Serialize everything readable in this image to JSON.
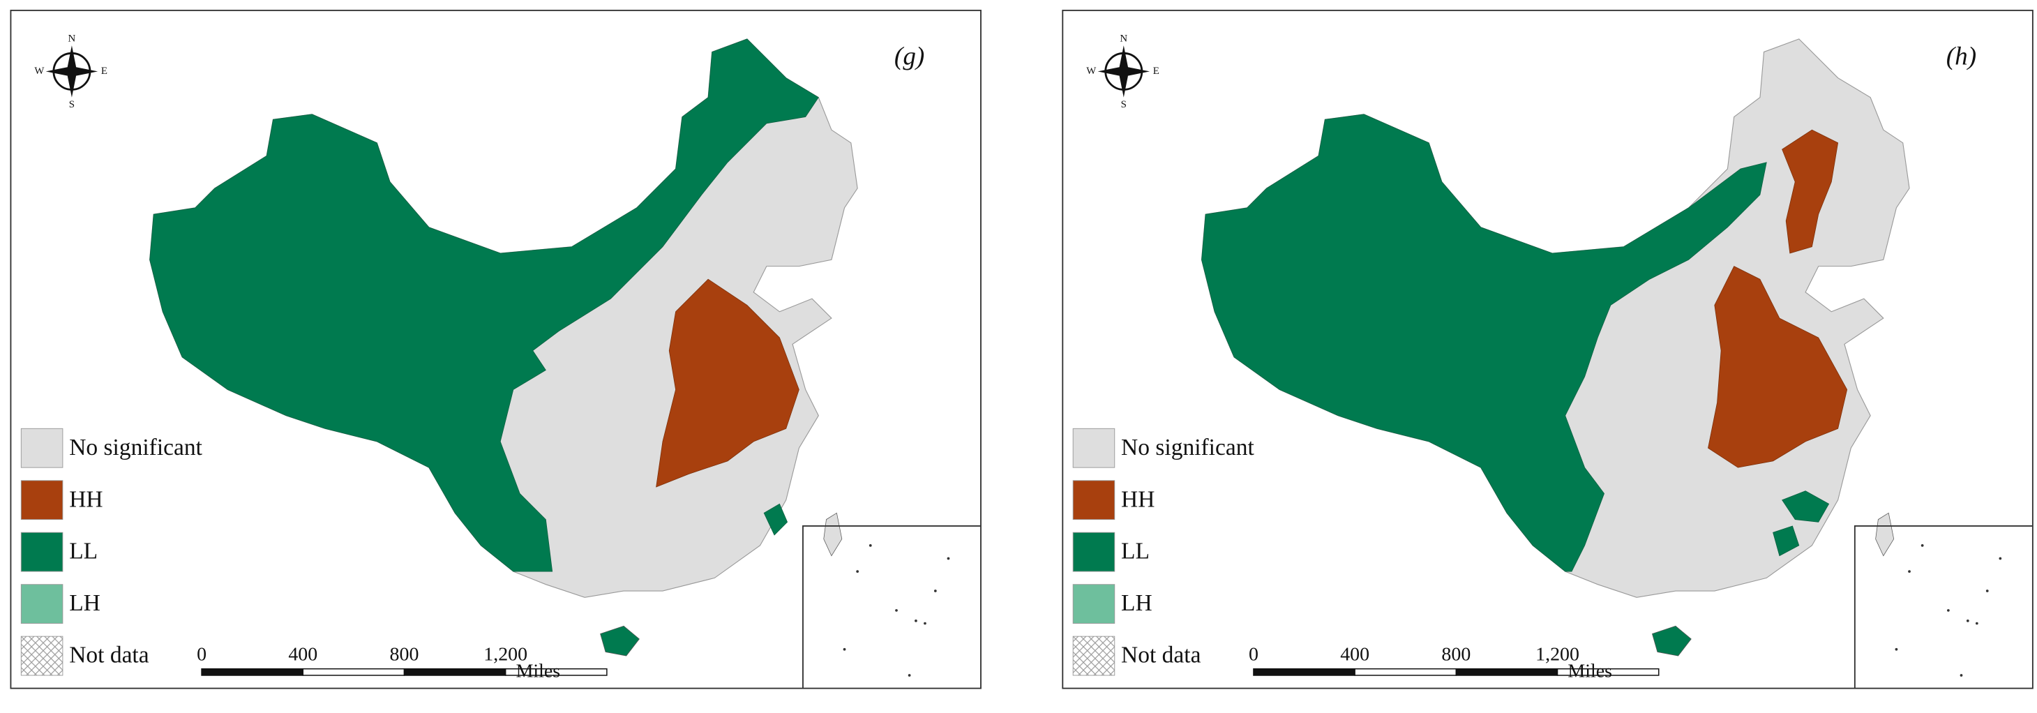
{
  "panels": [
    {
      "label": "(g)",
      "compass": {
        "n": "N",
        "e": "E",
        "s": "S",
        "w": "W"
      },
      "legend": [
        "No significant",
        "HH",
        "LL",
        "LH",
        "Not data"
      ],
      "scale_bar": {
        "ticks": [
          "0",
          "400",
          "800",
          "1,200"
        ],
        "unit": "Miles"
      }
    },
    {
      "label": "(h)",
      "compass": {
        "n": "N",
        "e": "E",
        "s": "S",
        "w": "W"
      },
      "legend": [
        "No significant",
        "HH",
        "LL",
        "LH",
        "Not data"
      ],
      "scale_bar": {
        "ticks": [
          "0",
          "400",
          "800",
          "1,200"
        ],
        "unit": "Miles"
      }
    }
  ]
}
